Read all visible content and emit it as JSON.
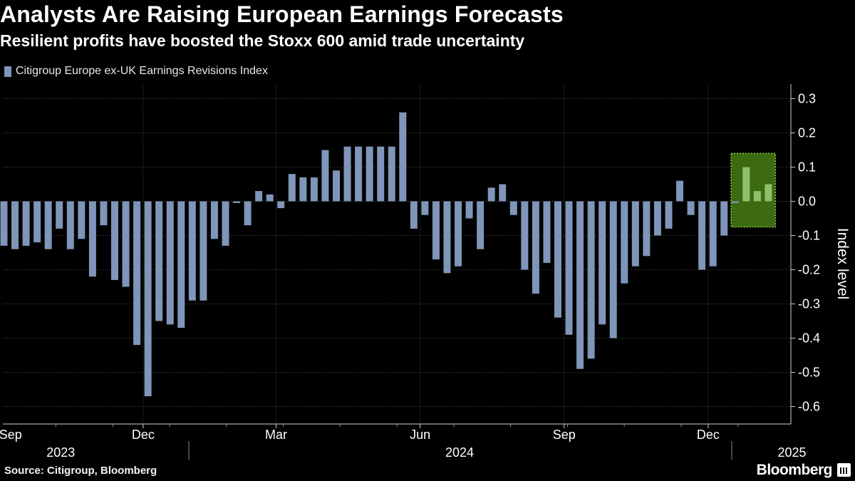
{
  "header": {
    "title": "Analysts Are Raising European Earnings Forecasts",
    "subtitle": "Resilient profits have boosted the Stoxx 600 amid trade uncertainty"
  },
  "footer": {
    "source": "Source: Citigroup, Bloomberg",
    "brand": "Bloomberg"
  },
  "colors": {
    "bar": "#7f95b9",
    "highlight_bar": "#8fbf6a",
    "highlight_fill": "#3b6a10",
    "highlight_border": "#8fce3c",
    "grid": "#4a4a4a"
  },
  "chart_data": {
    "type": "bar",
    "title": "Analysts Are Raising European Earnings Forecasts",
    "subtitle": "Resilient profits have boosted the Stoxx 600 amid trade uncertainty",
    "ylabel": "Index level",
    "ylim": [
      -0.65,
      0.35
    ],
    "y_ticks": [
      "0.3",
      "0.2",
      "0.1",
      "0.0",
      "-0.1",
      "-0.2",
      "-0.3",
      "-0.4",
      "-0.5",
      "-0.6"
    ],
    "y_tick_values": [
      0.3,
      0.2,
      0.1,
      0.0,
      -0.1,
      -0.2,
      -0.3,
      -0.4,
      -0.5,
      -0.6
    ],
    "x_month_labels": [
      "Sep",
      "Dec",
      "Mar",
      "Jun",
      "Sep",
      "Dec"
    ],
    "x_month_label_index": [
      0,
      13,
      25,
      38,
      51,
      64
    ],
    "x_year_labels": [
      "2023",
      "2024",
      "2025"
    ],
    "x_year_label_index": [
      5,
      41,
      71
    ],
    "x_year_boundary_index": [
      17,
      66
    ],
    "legend_position": "top-left",
    "grid": true,
    "series": [
      {
        "name": "Citigroup Europe ex-UK Earnings Revisions Index",
        "values": [
          -0.13,
          -0.14,
          -0.13,
          -0.12,
          -0.14,
          -0.08,
          -0.14,
          -0.11,
          -0.22,
          -0.07,
          -0.23,
          -0.25,
          -0.42,
          -0.57,
          -0.35,
          -0.36,
          -0.37,
          -0.29,
          -0.29,
          -0.11,
          -0.13,
          -0.005,
          -0.07,
          0.03,
          0.02,
          -0.02,
          0.08,
          0.07,
          0.07,
          0.15,
          0.09,
          0.16,
          0.16,
          0.16,
          0.16,
          0.16,
          0.26,
          -0.08,
          -0.04,
          -0.17,
          -0.21,
          -0.19,
          -0.05,
          -0.14,
          0.04,
          0.05,
          -0.04,
          -0.2,
          -0.27,
          -0.18,
          -0.34,
          -0.39,
          -0.49,
          -0.46,
          -0.36,
          -0.4,
          -0.24,
          -0.19,
          -0.16,
          -0.1,
          -0.08,
          0.06,
          -0.04,
          -0.2,
          -0.19,
          -0.1,
          -0.005,
          0.1,
          0.03,
          0.05
        ]
      }
    ],
    "highlight_start_index": 66
  }
}
